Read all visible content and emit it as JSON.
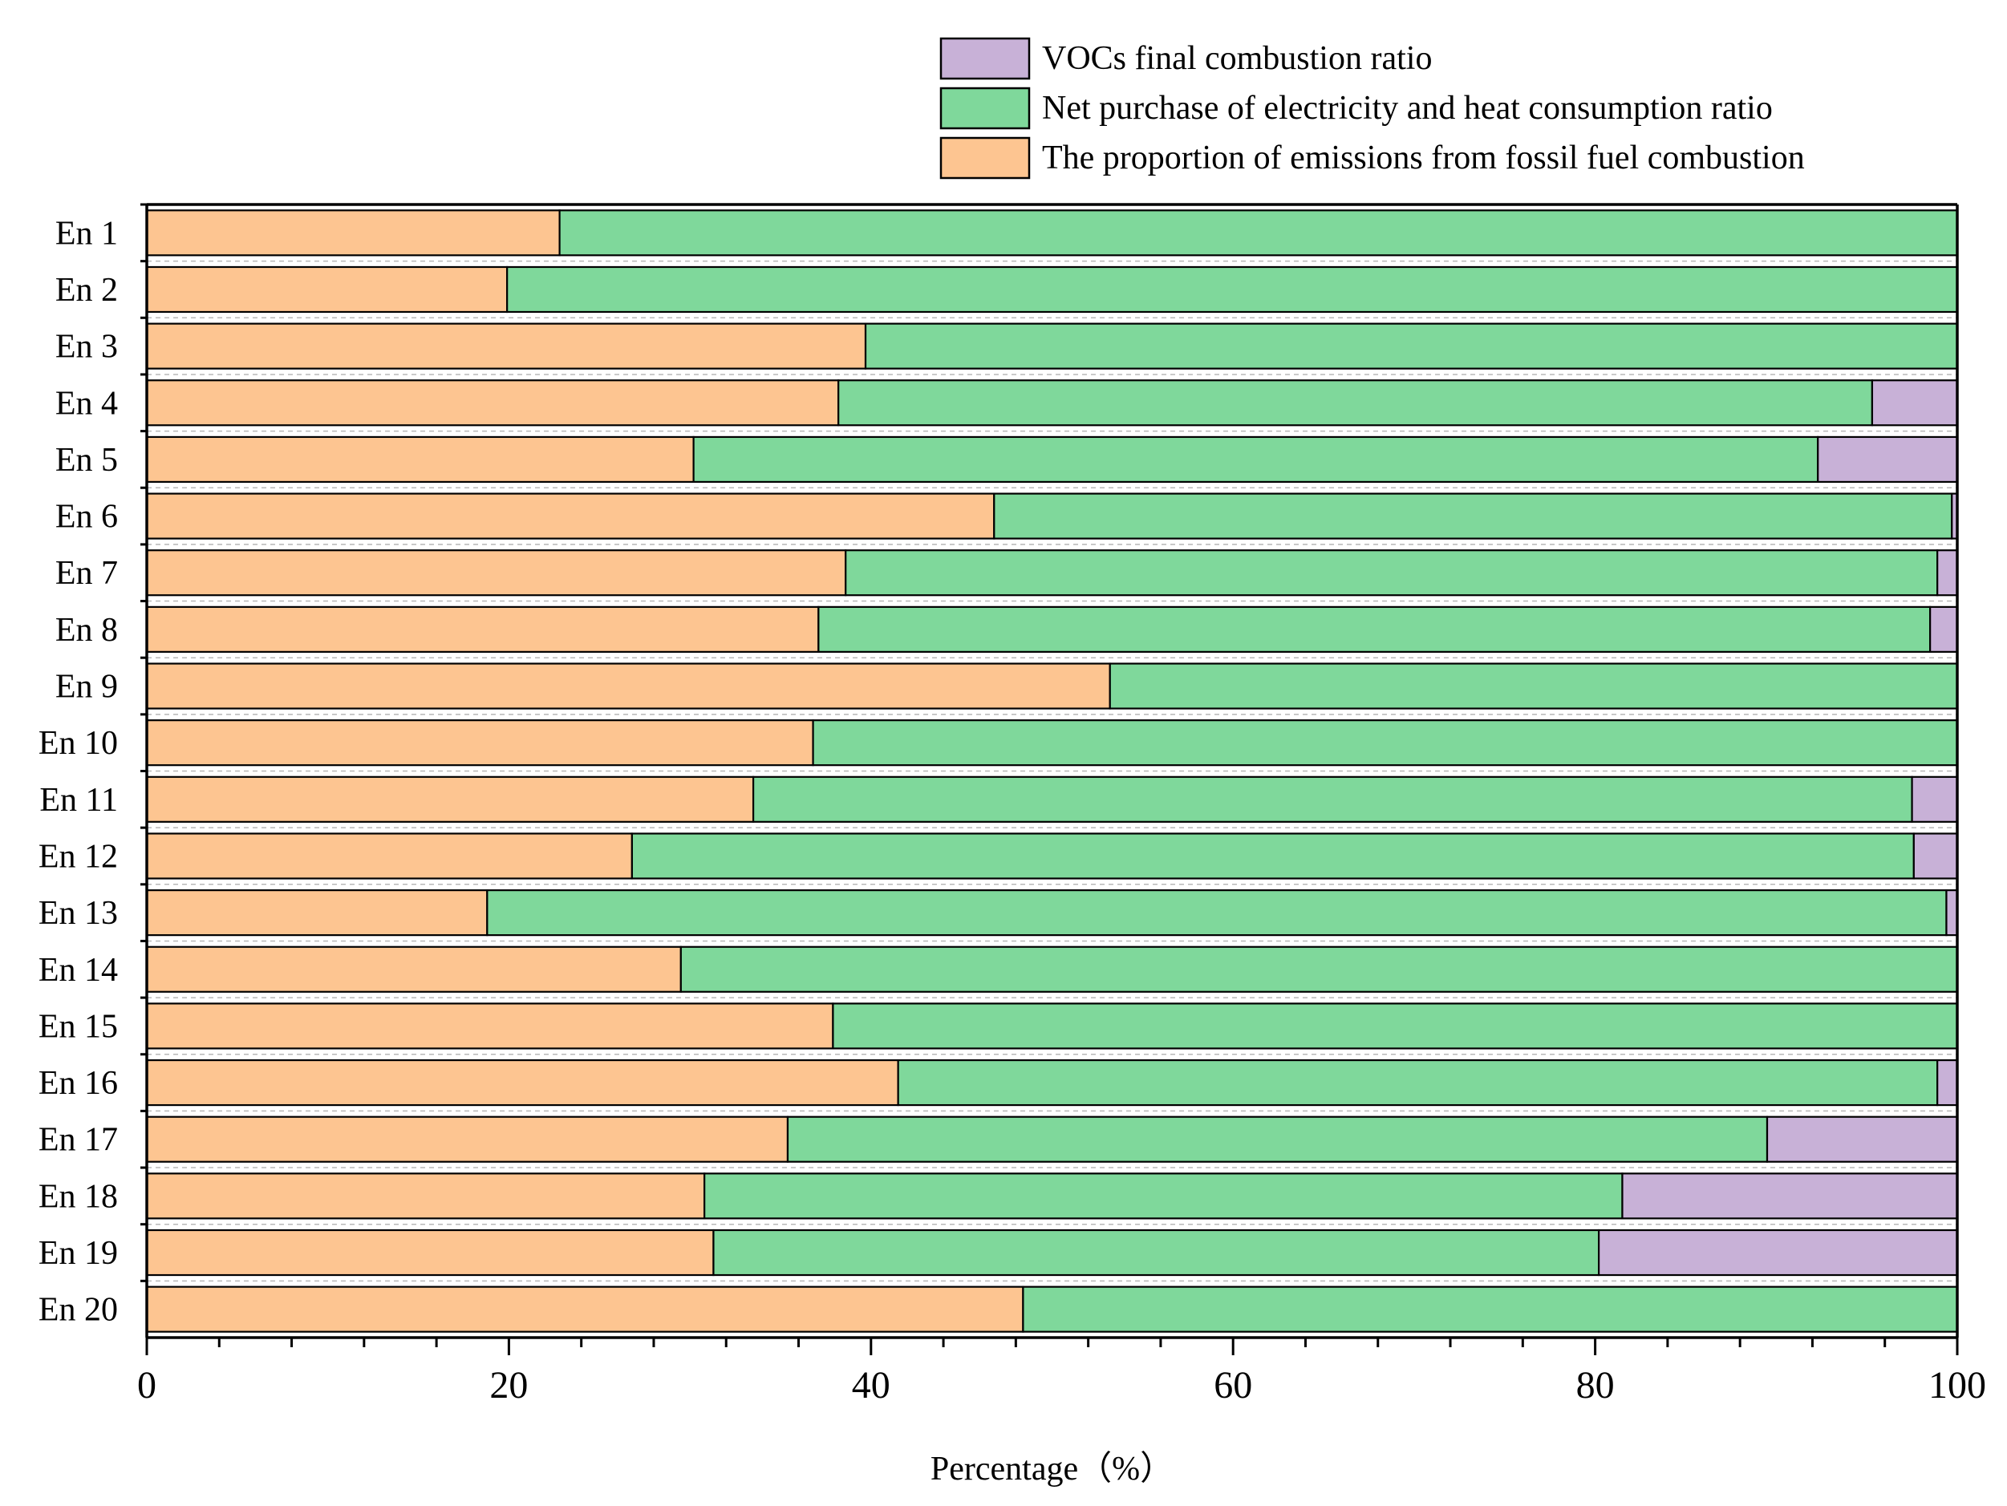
{
  "legend": [
    {
      "label": "VOCs final combustion ratio",
      "color": "#c8b1d7"
    },
    {
      "label": "Net purchase of electricity and heat consumption ratio",
      "color": "#7fd89b"
    },
    {
      "label": "The proportion of emissions from fossil fuel combustion",
      "color": "#fdc591"
    }
  ],
  "chart_data": {
    "type": "bar",
    "orientation": "horizontal",
    "stacked": true,
    "title": "",
    "xlabel": "Percentage（%）",
    "ylabel": "",
    "xlim": [
      0,
      100
    ],
    "x_ticks": [
      0,
      20,
      40,
      60,
      80,
      100
    ],
    "categories": [
      "En 1",
      "En 2",
      "En 3",
      "En 4",
      "En 5",
      "En 6",
      "En 7",
      "En 8",
      "En 9",
      "En 10",
      "En 11",
      "En 12",
      "En 13",
      "En 14",
      "En 15",
      "En 16",
      "En 17",
      "En 18",
      "En 19",
      "En 20"
    ],
    "series": [
      {
        "name": "The proportion of emissions from fossil fuel combustion",
        "color": "#fdc591",
        "values": [
          22.8,
          19.9,
          39.7,
          38.2,
          30.2,
          46.8,
          38.6,
          37.1,
          53.2,
          36.8,
          33.5,
          26.8,
          18.8,
          29.5,
          37.9,
          41.5,
          35.4,
          30.8,
          31.3,
          48.4
        ]
      },
      {
        "name": "Net purchase of electricity and heat consumption ratio",
        "color": "#7fd89b",
        "values": [
          77.2,
          80.1,
          60.3,
          57.1,
          62.1,
          52.9,
          60.3,
          61.4,
          46.8,
          63.2,
          64.0,
          70.8,
          80.6,
          70.5,
          62.1,
          57.4,
          54.1,
          50.7,
          48.9,
          51.6
        ]
      },
      {
        "name": "VOCs final combustion ratio",
        "color": "#c8b1d7",
        "values": [
          0,
          0,
          0,
          4.7,
          7.7,
          0.3,
          1.1,
          1.5,
          0,
          0,
          2.5,
          2.4,
          0.6,
          0,
          0,
          1.1,
          10.5,
          18.5,
          19.8,
          0
        ]
      }
    ],
    "grid": "dashed-horizontal",
    "legend_position": "top-right"
  }
}
